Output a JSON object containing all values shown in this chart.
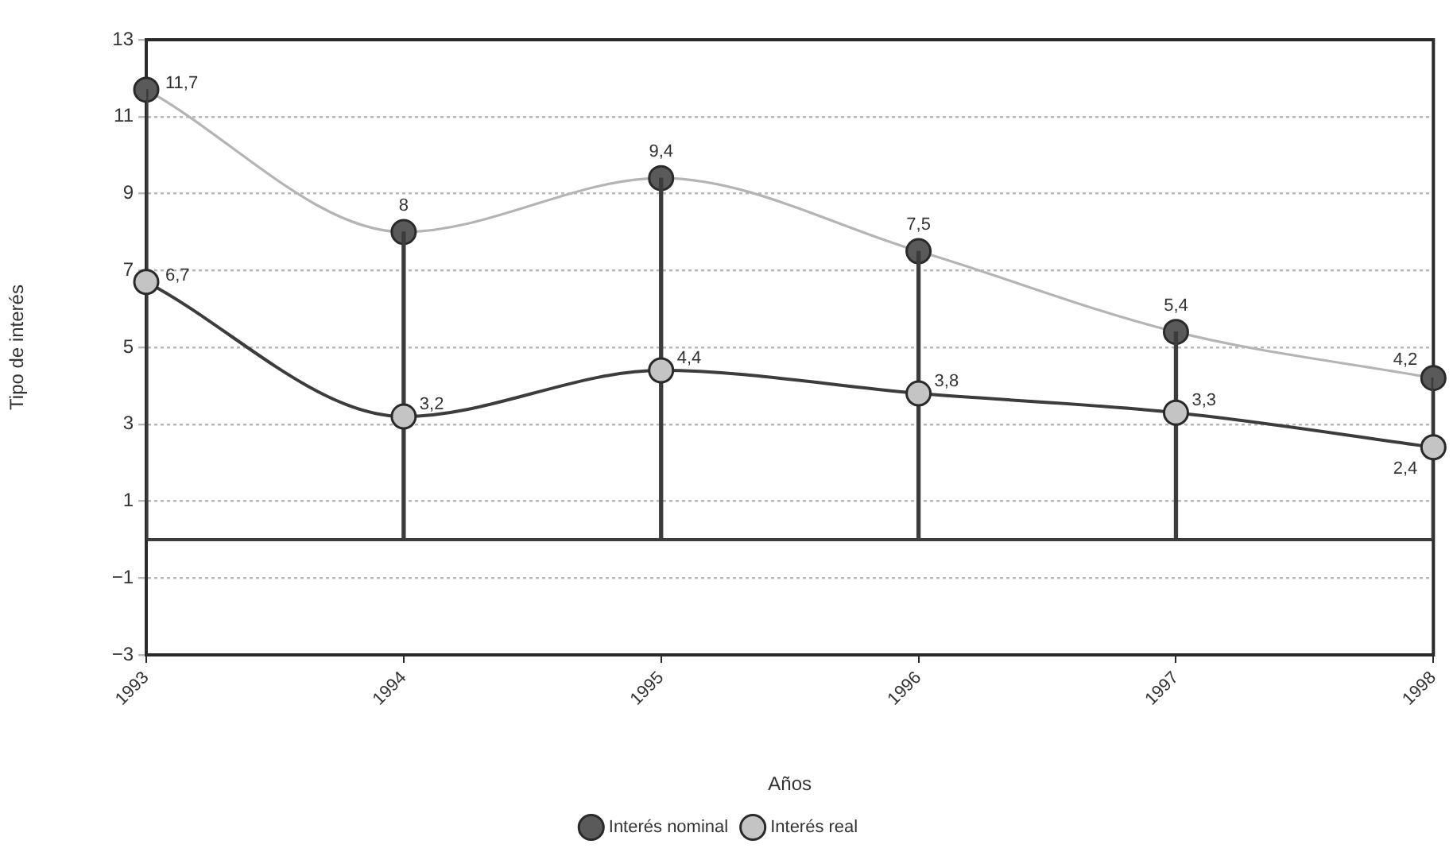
{
  "chart_data": {
    "type": "line",
    "xlabel": "Años",
    "ylabel": "Tipo de interés",
    "categories": [
      "1993",
      "1994",
      "1995",
      "1996",
      "1997",
      "1998"
    ],
    "series": [
      {
        "name": "Interés nominal",
        "color": "#b4b4b4",
        "colors": [
          "#5a5a5a",
          "#5a5a5a",
          "#5a5a5a",
          "#5a5a5a",
          "#5a5a5a",
          "#5a5a5a"
        ],
        "values": [
          11.7,
          8,
          9.4,
          7.5,
          5.4,
          4.2
        ],
        "value_labels": [
          "11,7",
          "8",
          "9,4",
          "7,5",
          "5,4",
          "4,2"
        ]
      },
      {
        "type": "bar",
        "color": "#3c3c3c",
        "values": [
          11.7,
          8,
          9.4,
          7.5,
          5.4,
          4.2
        ]
      },
      {
        "name": "Interés real",
        "color": "#3c3c3c",
        "colors": [
          "#c4c4c4",
          "#c4c4c4",
          "#c4c4c4",
          "#c4c4c4",
          "#c4c4c4",
          "#c4c4c4"
        ],
        "values": [
          6.7,
          3.2,
          4.4,
          3.8,
          3.3,
          2.4
        ],
        "value_labels": [
          "6,7",
          "3,2",
          "4,4",
          "3,8",
          "3,3",
          "2,4"
        ]
      }
    ],
    "ylim": [
      -3,
      13
    ],
    "yticks": [
      {
        "value": -3,
        "label": "−3"
      },
      {
        "value": -1,
        "label": "−1"
      },
      1,
      3,
      5,
      7,
      9,
      11,
      13
    ],
    "grid": "y",
    "legend": "bottom",
    "marker": "circle",
    "ref_lines": [
      {
        "axis": "y",
        "value": 0,
        "color": "#3c3c3c"
      }
    ]
  }
}
